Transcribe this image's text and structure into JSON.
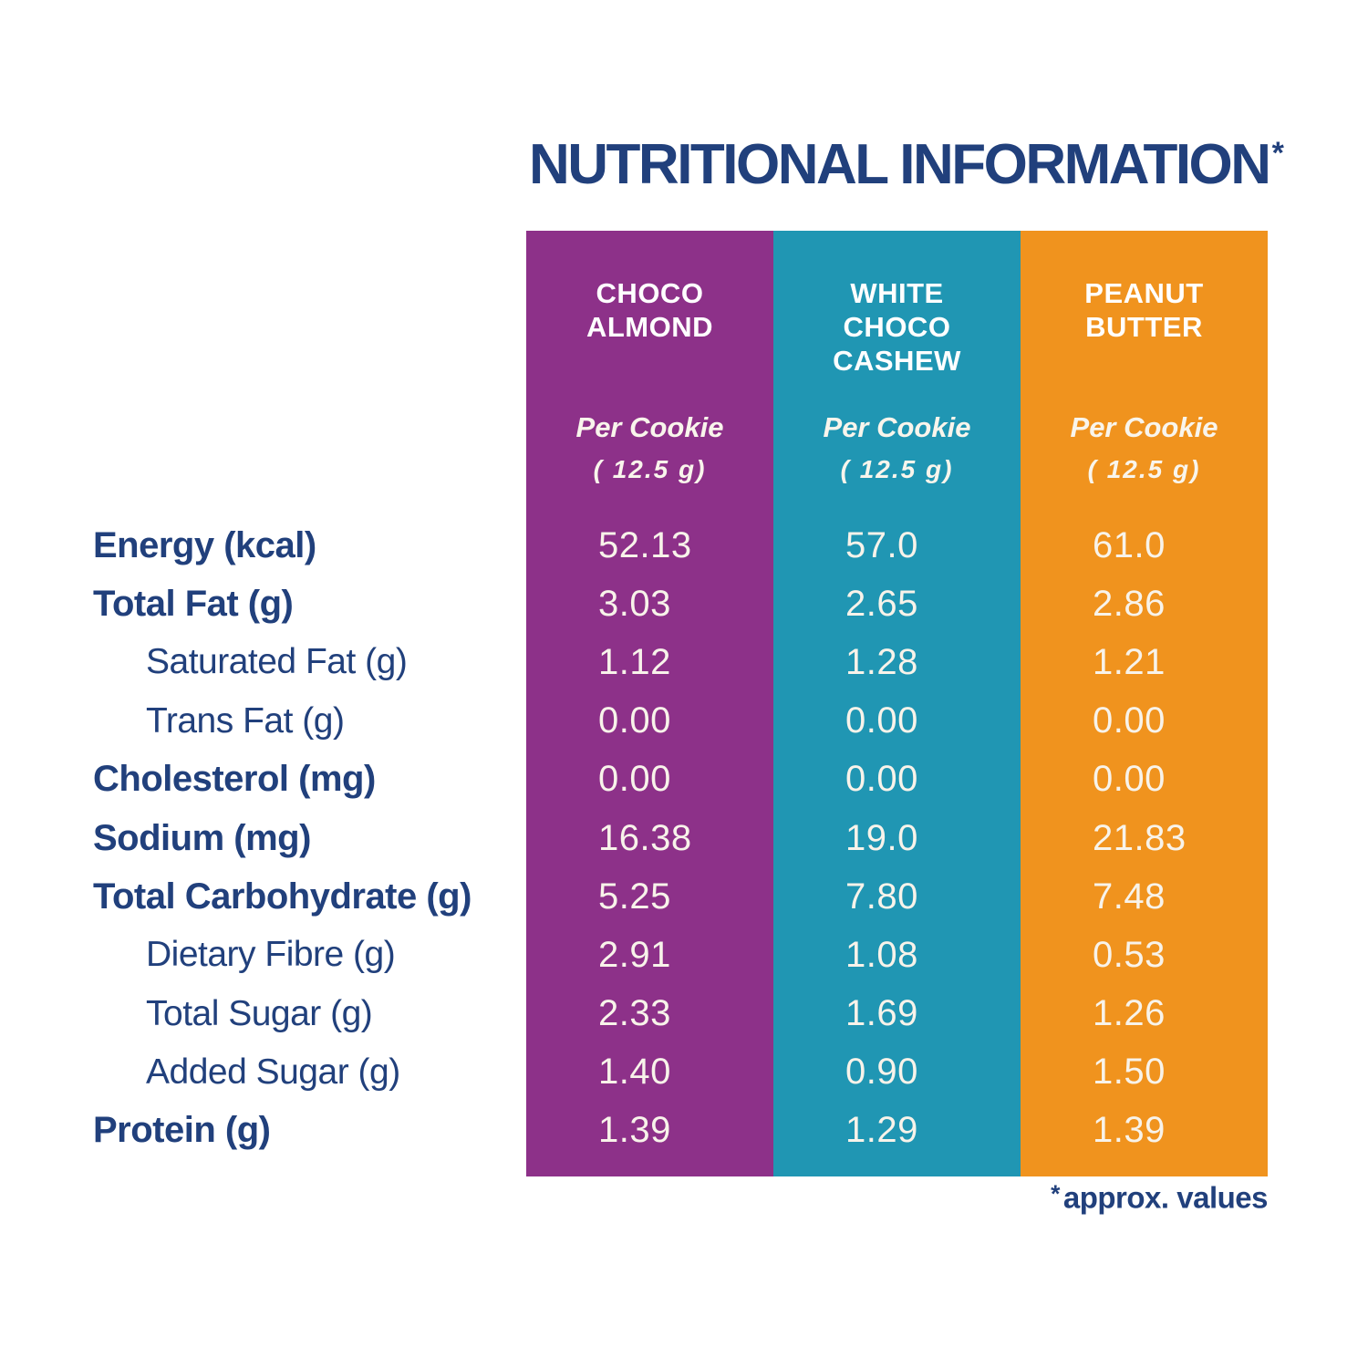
{
  "title": {
    "text": "NUTRITIONAL INFORMATION",
    "asterisk": "*"
  },
  "footnote": {
    "asterisk": "*",
    "text": "approx. values"
  },
  "colors": {
    "navy_text": "#21407c",
    "purple_column": "#8d3189",
    "teal_column": "#2096b3",
    "orange_column": "#f0931e",
    "header_text": "#ffffff",
    "value_text": "#f8f3ea",
    "background": "#ffffff"
  },
  "columns": [
    {
      "id": "choco-almond",
      "name_lines": [
        "CHOCO",
        "ALMOND"
      ],
      "serving_label": "Per Cookie",
      "serving_size": "( 12.5 g)",
      "color": "#8d3189"
    },
    {
      "id": "white-choco-cashew",
      "name_lines": [
        "WHITE",
        "CHOCO",
        "CASHEW"
      ],
      "serving_label": "Per Cookie",
      "serving_size": "( 12.5 g)",
      "color": "#2096b3"
    },
    {
      "id": "peanut-butter",
      "name_lines": [
        "PEANUT",
        "BUTTER"
      ],
      "serving_label": "Per Cookie",
      "serving_size": "( 12.5 g)",
      "color": "#f0931e"
    }
  ],
  "rows": [
    {
      "label": "Energy (kcal)",
      "bold": true,
      "indent": false,
      "values": [
        "52.13",
        "57.0",
        "61.0"
      ]
    },
    {
      "label": "Total Fat (g)",
      "bold": true,
      "indent": false,
      "values": [
        "3.03",
        "2.65",
        "2.86"
      ]
    },
    {
      "label": "Saturated Fat (g)",
      "bold": false,
      "indent": true,
      "values": [
        "1.12",
        "1.28",
        "1.21"
      ]
    },
    {
      "label": "Trans Fat (g)",
      "bold": false,
      "indent": true,
      "values": [
        "0.00",
        "0.00",
        "0.00"
      ]
    },
    {
      "label": "Cholesterol (mg)",
      "bold": true,
      "indent": false,
      "values": [
        "0.00",
        "0.00",
        "0.00"
      ]
    },
    {
      "label": "Sodium (mg)",
      "bold": true,
      "indent": false,
      "values": [
        "16.38",
        "19.0",
        "21.83"
      ]
    },
    {
      "label": "Total Carbohydrate (g)",
      "bold": true,
      "indent": false,
      "values": [
        "5.25",
        "7.80",
        "7.48"
      ]
    },
    {
      "label": "Dietary Fibre (g)",
      "bold": false,
      "indent": true,
      "values": [
        "2.91",
        "1.08",
        "0.53"
      ]
    },
    {
      "label": "Total Sugar (g)",
      "bold": false,
      "indent": true,
      "values": [
        "2.33",
        "1.69",
        "1.26"
      ]
    },
    {
      "label": "Added Sugar (g)",
      "bold": false,
      "indent": true,
      "values": [
        "1.40",
        "0.90",
        "1.50"
      ]
    },
    {
      "label": "Protein (g)",
      "bold": true,
      "indent": false,
      "values": [
        "1.39",
        "1.29",
        "1.39"
      ]
    }
  ]
}
